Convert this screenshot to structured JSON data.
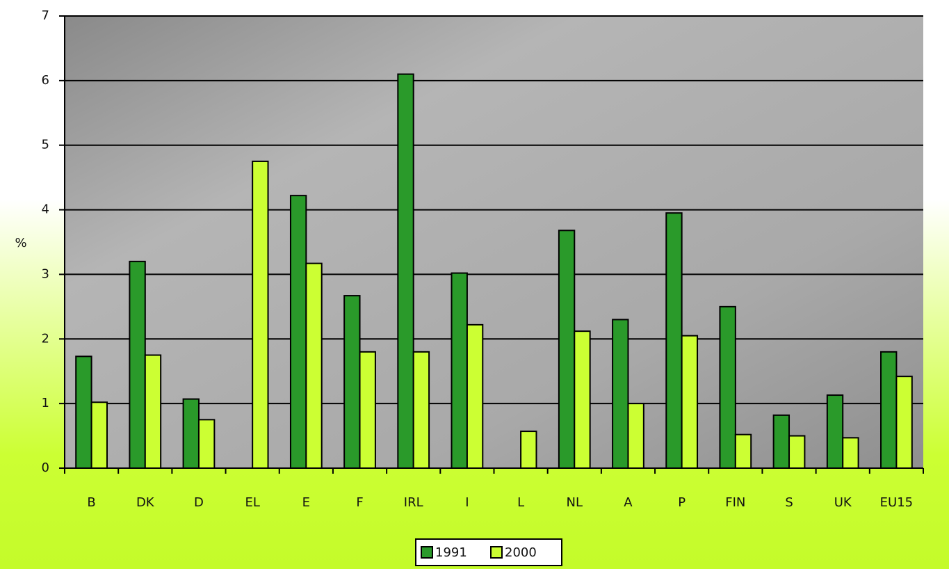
{
  "chart_data": {
    "type": "bar",
    "y_label": "%",
    "categories": [
      "B",
      "DK",
      "D",
      "EL",
      "E",
      "F",
      "IRL",
      "I",
      "L",
      "NL",
      "A",
      "P",
      "FIN",
      "S",
      "UK",
      "EU15"
    ],
    "series": [
      {
        "name": "1991",
        "color": "#2a9a2a",
        "values": [
          1.73,
          3.2,
          1.07,
          null,
          4.22,
          2.67,
          6.1,
          3.02,
          null,
          3.68,
          2.3,
          3.95,
          2.5,
          0.82,
          1.13,
          1.8
        ]
      },
      {
        "name": "2000",
        "color": "#ccff33",
        "values": [
          1.02,
          1.75,
          0.75,
          4.75,
          3.17,
          1.8,
          1.8,
          2.22,
          0.57,
          2.12,
          1.0,
          2.05,
          0.52,
          0.5,
          0.47,
          1.42
        ]
      }
    ],
    "ylim": [
      0,
      7
    ],
    "yticks": [
      0,
      1,
      2,
      3,
      4,
      5,
      6,
      7
    ],
    "grid": true
  }
}
